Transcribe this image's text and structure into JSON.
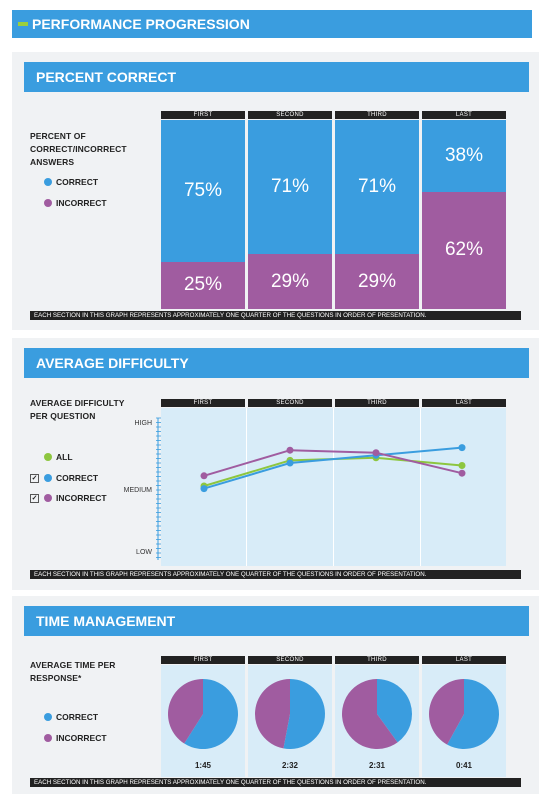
{
  "title": "PERFORMANCE PROGRESSION",
  "colors": {
    "correct": "#3a9ddf",
    "incorrect": "#a05ca0",
    "all": "#8dc63f",
    "header": "#3a9ddf"
  },
  "columns": [
    "FIRST",
    "SECOND",
    "THIRD",
    "LAST"
  ],
  "footnote": "EACH SECTION IN THIS GRAPH REPRESENTS APPROXIMATELY ONE QUARTER OF THE QUESTIONS IN ORDER OF PRESENTATION.",
  "percent_section": {
    "header": "PERCENT CORRECT",
    "label_lines": [
      "PERCENT OF",
      "CORRECT/INCORRECT",
      "ANSWERS"
    ],
    "legend": {
      "correct": "CORRECT",
      "incorrect": "INCORRECT"
    },
    "correct_labels": [
      "75%",
      "71%",
      "71%",
      "38%"
    ],
    "incorrect_labels": [
      "25%",
      "29%",
      "29%",
      "62%"
    ]
  },
  "difficulty_section": {
    "header": "AVERAGE DIFFICULTY",
    "label_lines": [
      "AVERAGE DIFFICULTY",
      "PER QUESTION"
    ],
    "legend": {
      "all": "ALL",
      "correct": "CORRECT",
      "incorrect": "INCORRECT",
      "check_mark": "✓"
    },
    "axis_labels": {
      "high": "HIGH",
      "medium": "MEDIUM",
      "low": "LOW"
    }
  },
  "time_section": {
    "header": "TIME MANAGEMENT",
    "label_lines": [
      "AVERAGE TIME PER",
      "RESPONSE*"
    ],
    "legend": {
      "correct": "CORRECT",
      "incorrect": "INCORRECT"
    },
    "times": [
      "1:45",
      "2:32",
      "2:31",
      "0:41"
    ]
  },
  "chart_data": [
    {
      "type": "bar",
      "title": "PERCENT CORRECT",
      "categories": [
        "FIRST",
        "SECOND",
        "THIRD",
        "LAST"
      ],
      "series": [
        {
          "name": "CORRECT",
          "values": [
            75,
            71,
            71,
            38
          ]
        },
        {
          "name": "INCORRECT",
          "values": [
            25,
            29,
            29,
            62
          ]
        }
      ],
      "stacked": true,
      "ylim": [
        0,
        100
      ]
    },
    {
      "type": "line",
      "title": "AVERAGE DIFFICULTY",
      "categories": [
        "FIRST",
        "SECOND",
        "THIRD",
        "LAST"
      ],
      "ylabel": "AVERAGE DIFFICULTY PER QUESTION",
      "yticks": [
        "LOW",
        "MEDIUM",
        "HIGH"
      ],
      "ylim": [
        0,
        1
      ],
      "series": [
        {
          "name": "ALL",
          "values": [
            0.5,
            0.7,
            0.72,
            0.66
          ]
        },
        {
          "name": "CORRECT",
          "values": [
            0.48,
            0.68,
            0.74,
            0.8
          ]
        },
        {
          "name": "INCORRECT",
          "values": [
            0.58,
            0.78,
            0.76,
            0.6
          ]
        }
      ]
    },
    {
      "type": "pie",
      "title": "TIME MANAGEMENT",
      "categories": [
        "FIRST",
        "SECOND",
        "THIRD",
        "LAST"
      ],
      "time_labels": [
        "1:45",
        "2:32",
        "2:31",
        "0:41"
      ],
      "series": [
        {
          "name": "CORRECT",
          "values": [
            59,
            53,
            40,
            58
          ]
        },
        {
          "name": "INCORRECT",
          "values": [
            41,
            47,
            60,
            42
          ]
        }
      ]
    }
  ]
}
